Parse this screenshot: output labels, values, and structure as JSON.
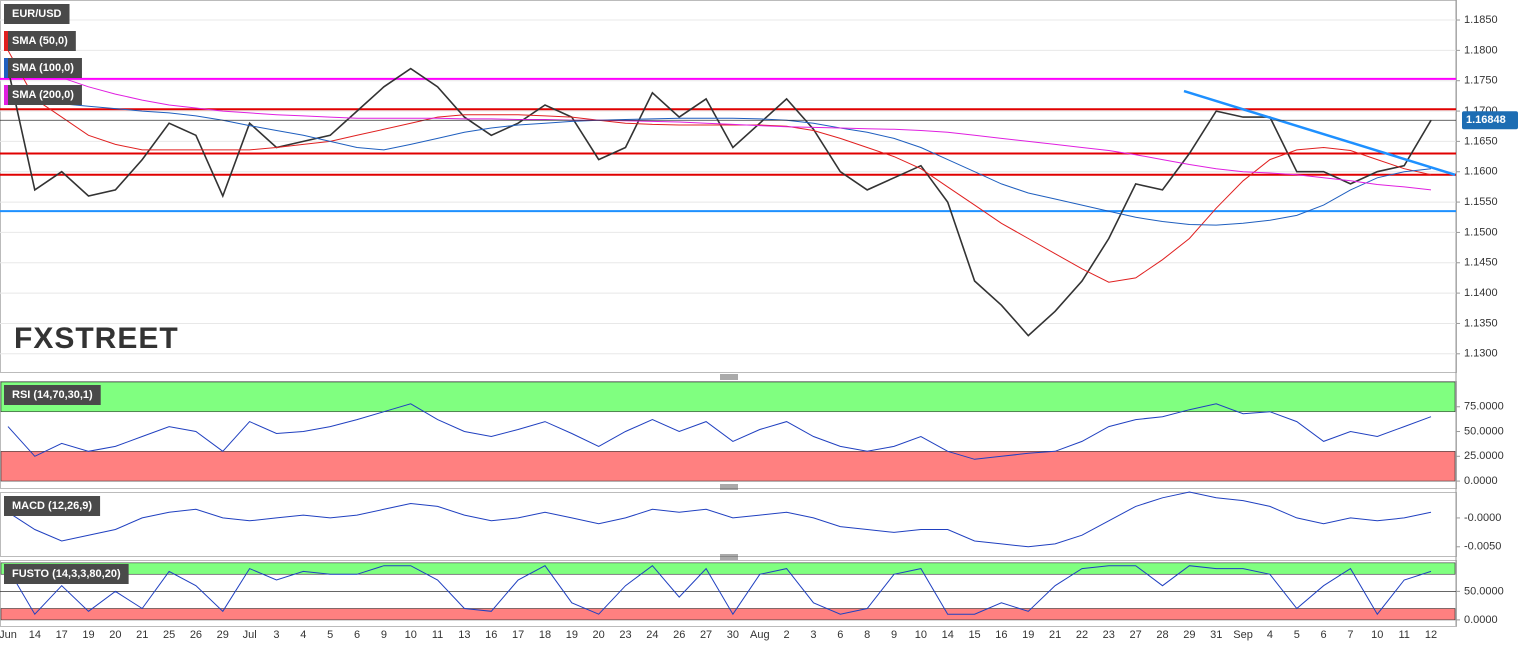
{
  "watermark": "FXSTREET",
  "chart_data": [
    {
      "type": "line",
      "grid": true,
      "categories": [
        "Jun",
        "14",
        "17",
        "19",
        "20",
        "21",
        "25",
        "26",
        "29",
        "Jul",
        "3",
        "4",
        "5",
        "6",
        "9",
        "10",
        "11",
        "13",
        "16",
        "17",
        "18",
        "19",
        "20",
        "23",
        "24",
        "26",
        "27",
        "30",
        "Aug",
        "2",
        "3",
        "6",
        "8",
        "9",
        "10",
        "14",
        "15",
        "16",
        "19",
        "21",
        "22",
        "23",
        "27",
        "28",
        "29",
        "31",
        "Sep",
        "4",
        "5",
        "6",
        "7",
        "10",
        "11",
        "12"
      ],
      "ylim": [
        1.127,
        1.1883
      ],
      "yticks": [
        {
          "value": 1.185,
          "label": "1.1850"
        },
        {
          "value": 1.18,
          "label": "1.1800"
        },
        {
          "value": 1.175,
          "label": "1.1750"
        },
        {
          "value": 1.17,
          "label": "1.1700"
        },
        {
          "value": 1.165,
          "label": "1.1650"
        },
        {
          "value": 1.16,
          "label": "1.1600"
        },
        {
          "value": 1.155,
          "label": "1.1550"
        },
        {
          "value": 1.15,
          "label": "1.1500"
        },
        {
          "value": 1.145,
          "label": "1.1450"
        },
        {
          "value": 1.14,
          "label": "1.1400"
        },
        {
          "value": 1.135,
          "label": "1.1350"
        },
        {
          "value": 1.13,
          "label": "1.1300"
        }
      ],
      "last": 1.16848,
      "hlines": [
        {
          "value": 1.1753,
          "color": "#ff00ff"
        },
        {
          "value": 1.1703,
          "color": "#e00000"
        },
        {
          "value": 1.163,
          "color": "#e00000"
        },
        {
          "value": 1.1595,
          "color": "#e00000"
        },
        {
          "value": 1.1535,
          "color": "#1e90ff"
        }
      ],
      "trendlines": [
        {
          "x": [
            43.8,
            53.9
          ],
          "values": [
            1.1733,
            1.1595
          ],
          "color": "#1e90ff"
        }
      ],
      "series": [
        {
          "name": "EUR/USD",
          "color": "#333333",
          "values": [
            1.177,
            1.157,
            1.16,
            1.156,
            1.157,
            1.162,
            1.168,
            1.166,
            1.156,
            1.168,
            1.164,
            1.165,
            1.166,
            1.17,
            1.174,
            1.177,
            1.174,
            1.169,
            1.166,
            1.168,
            1.171,
            1.169,
            1.162,
            1.164,
            1.173,
            1.169,
            1.172,
            1.164,
            1.168,
            1.172,
            1.167,
            1.16,
            1.157,
            1.159,
            1.161,
            1.155,
            1.142,
            1.138,
            1.133,
            1.137,
            1.142,
            1.149,
            1.158,
            1.157,
            1.163,
            1.17,
            1.169,
            1.169,
            1.16,
            1.16,
            1.158,
            1.16,
            1.161,
            1.16848
          ]
        },
        {
          "name": "SMA (50,0)",
          "color": "#e02020",
          "values": [
            1.18,
            1.172,
            1.169,
            1.166,
            1.1645,
            1.1636,
            1.1636,
            1.1636,
            1.1636,
            1.1636,
            1.164,
            1.1645,
            1.165,
            1.166,
            1.167,
            1.168,
            1.169,
            1.1694,
            1.1694,
            1.1694,
            1.1692,
            1.169,
            1.1685,
            1.168,
            1.1678,
            1.1677,
            1.1677,
            1.1677,
            1.1677,
            1.1675,
            1.1668,
            1.1655,
            1.164,
            1.1625,
            1.1605,
            1.1575,
            1.1545,
            1.1515,
            1.149,
            1.1465,
            1.144,
            1.1418,
            1.1425,
            1.1455,
            1.149,
            1.154,
            1.1585,
            1.162,
            1.1636,
            1.164,
            1.1635,
            1.162,
            1.1605,
            1.1595
          ]
        },
        {
          "name": "SMA (100,0)",
          "color": "#1f5fbf",
          "values": [
            1.1718,
            1.1715,
            1.1712,
            1.1708,
            1.1704,
            1.17,
            1.1697,
            1.1692,
            1.1685,
            1.1676,
            1.1668,
            1.166,
            1.165,
            1.164,
            1.1636,
            1.1645,
            1.1655,
            1.1665,
            1.1672,
            1.1677,
            1.168,
            1.1683,
            1.1685,
            1.1686,
            1.1687,
            1.1688,
            1.1688,
            1.1688,
            1.1687,
            1.1685,
            1.168,
            1.1672,
            1.1665,
            1.1655,
            1.164,
            1.162,
            1.16,
            1.158,
            1.1565,
            1.1555,
            1.1545,
            1.1535,
            1.1525,
            1.1518,
            1.1513,
            1.1512,
            1.1515,
            1.152,
            1.1528,
            1.1545,
            1.157,
            1.159,
            1.16,
            1.1605
          ]
        },
        {
          "name": "SMA (200,0)",
          "color": "#e020e0",
          "values": [
            1.1785,
            1.177,
            1.1755,
            1.174,
            1.1728,
            1.1718,
            1.171,
            1.1705,
            1.17,
            1.1697,
            1.1694,
            1.1692,
            1.169,
            1.1688,
            1.1688,
            1.1688,
            1.1688,
            1.1687,
            1.1687,
            1.1686,
            1.1686,
            1.1685,
            1.1685,
            1.1684,
            1.1683,
            1.1682,
            1.168,
            1.1678,
            1.1676,
            1.1674,
            1.1673,
            1.1672,
            1.1671,
            1.167,
            1.1668,
            1.1665,
            1.166,
            1.1655,
            1.165,
            1.1645,
            1.164,
            1.1635,
            1.1628,
            1.162,
            1.1612,
            1.1605,
            1.16,
            1.1598,
            1.1595,
            1.159,
            1.1585,
            1.1579,
            1.1575,
            1.157
          ]
        }
      ]
    },
    {
      "type": "line",
      "title": "RSI (14,70,30,1)",
      "ylim": [
        -7,
        101
      ],
      "yticks": [
        {
          "value": 75,
          "label": "75.0000"
        },
        {
          "value": 50,
          "label": "50.0000"
        },
        {
          "value": 25,
          "label": "25.0000"
        },
        {
          "value": 0,
          "label": "0.0000"
        }
      ],
      "bands": [
        {
          "from": 70,
          "to": 100,
          "color": "#80ff80"
        },
        {
          "from": 0,
          "to": 30,
          "color": "#ff8080"
        }
      ],
      "series": [
        {
          "color": "#2040c0",
          "values": [
            55,
            25,
            38,
            30,
            35,
            45,
            55,
            50,
            30,
            60,
            48,
            50,
            55,
            62,
            70,
            78,
            62,
            50,
            45,
            52,
            60,
            48,
            35,
            50,
            62,
            50,
            60,
            40,
            52,
            60,
            45,
            35,
            30,
            35,
            45,
            30,
            22,
            25,
            28,
            30,
            40,
            55,
            62,
            65,
            72,
            78,
            68,
            70,
            60,
            40,
            50,
            45,
            55,
            65
          ]
        }
      ]
    },
    {
      "type": "line",
      "title": "MACD (12,26,9)",
      "ylim": [
        -0.0066,
        0.0045
      ],
      "yticks": [
        {
          "value": 0,
          "label": "-0.0000"
        },
        {
          "value": -0.005,
          "label": "-0.0050"
        }
      ],
      "series": [
        {
          "color": "#2040c0",
          "values": [
            0.001,
            -0.002,
            -0.004,
            -0.003,
            -0.002,
            0,
            0.001,
            0.0015,
            0,
            -0.0005,
            0,
            0.0005,
            0,
            0.0005,
            0.0015,
            0.0025,
            0.002,
            0.0005,
            -0.0005,
            0,
            0.001,
            0,
            -0.001,
            0,
            0.0015,
            0.001,
            0.0015,
            0,
            0.0005,
            0.001,
            0,
            -0.0015,
            -0.002,
            -0.0025,
            -0.002,
            -0.002,
            -0.004,
            -0.0045,
            -0.005,
            -0.0045,
            -0.003,
            -0.0005,
            0.002,
            0.0035,
            0.0045,
            0.0035,
            0.003,
            0.002,
            0,
            -0.001,
            0,
            -0.0005,
            0,
            0.001
          ]
        }
      ]
    },
    {
      "type": "line",
      "title": "FUSTO (14,3,3,80,20)",
      "ylim": [
        -10.7,
        105
      ],
      "yticks": [
        {
          "value": 50,
          "label": "50.0000"
        },
        {
          "value": 0,
          "label": "0.0000"
        }
      ],
      "bands": [
        {
          "from": 80,
          "to": 100,
          "color": "#80ff80"
        },
        {
          "from": 0,
          "to": 20,
          "color": "#ff8080"
        }
      ],
      "hlines": [
        {
          "value": 50,
          "color": "#333333"
        }
      ],
      "series": [
        {
          "color": "#2040c0",
          "values": [
            90,
            10,
            60,
            15,
            50,
            20,
            85,
            60,
            15,
            90,
            70,
            85,
            80,
            80,
            95,
            95,
            70,
            20,
            15,
            70,
            95,
            30,
            10,
            60,
            95,
            40,
            90,
            10,
            80,
            90,
            30,
            10,
            20,
            80,
            90,
            10,
            10,
            30,
            15,
            60,
            90,
            95,
            95,
            60,
            95,
            90,
            90,
            80,
            20,
            60,
            90,
            10,
            70,
            85
          ]
        }
      ]
    }
  ]
}
